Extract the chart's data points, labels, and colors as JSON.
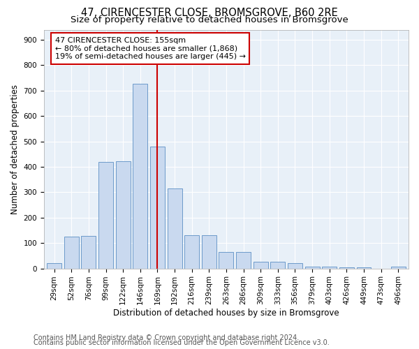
{
  "title": "47, CIRENCESTER CLOSE, BROMSGROVE, B60 2RE",
  "subtitle": "Size of property relative to detached houses in Bromsgrove",
  "xlabel": "Distribution of detached houses by size in Bromsgrove",
  "ylabel": "Number of detached properties",
  "footnote1": "Contains HM Land Registry data © Crown copyright and database right 2024.",
  "footnote2": "Contains public sector information licensed under the Open Government Licence v3.0.",
  "bar_labels": [
    "29sqm",
    "52sqm",
    "76sqm",
    "99sqm",
    "122sqm",
    "146sqm",
    "169sqm",
    "192sqm",
    "216sqm",
    "239sqm",
    "263sqm",
    "286sqm",
    "309sqm",
    "333sqm",
    "356sqm",
    "379sqm",
    "403sqm",
    "426sqm",
    "449sqm",
    "473sqm",
    "496sqm"
  ],
  "bar_values": [
    22,
    125,
    128,
    420,
    422,
    728,
    480,
    315,
    130,
    130,
    65,
    65,
    25,
    25,
    20,
    8,
    8,
    5,
    5,
    0,
    8
  ],
  "bar_color": "#c9d9ef",
  "bar_edge_color": "#5b8ec4",
  "vline_x": 6.0,
  "vline_color": "#cc0000",
  "annotation_text": "47 CIRENCESTER CLOSE: 155sqm\n← 80% of detached houses are smaller (1,868)\n19% of semi-detached houses are larger (445) →",
  "annotation_box_color": "#cc0000",
  "ylim": [
    0,
    940
  ],
  "yticks": [
    0,
    100,
    200,
    300,
    400,
    500,
    600,
    700,
    800,
    900
  ],
  "background_color": "#e8f0f8",
  "grid_color": "#ffffff",
  "title_fontsize": 10.5,
  "subtitle_fontsize": 9.5,
  "axis_label_fontsize": 8.5,
  "tick_fontsize": 7.5,
  "annotation_fontsize": 8,
  "footnote_fontsize": 7
}
